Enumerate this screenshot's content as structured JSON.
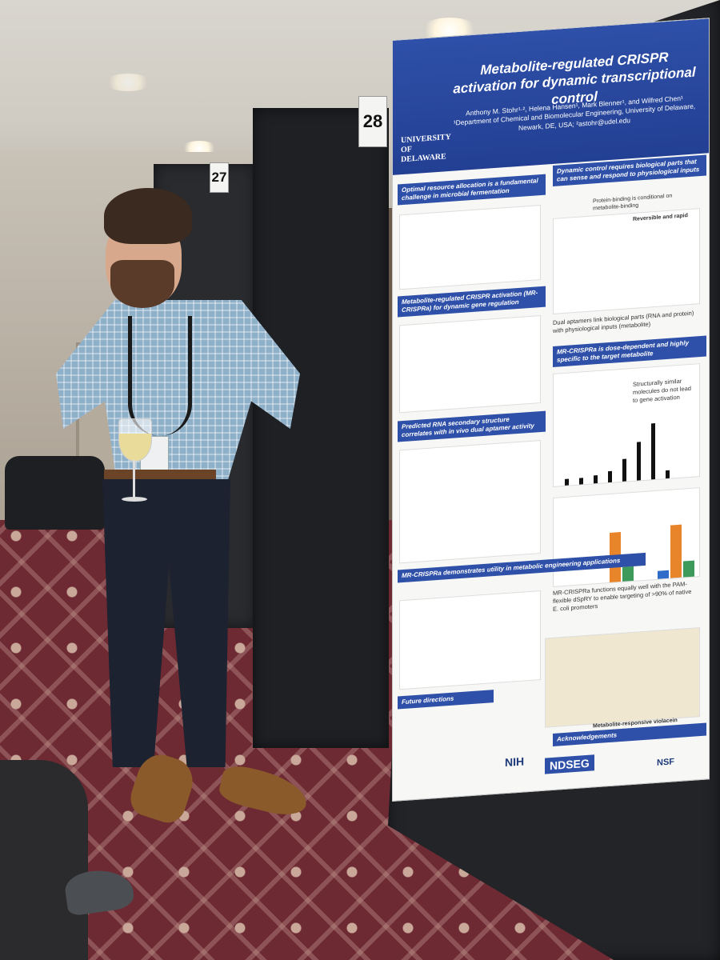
{
  "scene": {
    "panel_numbers": [
      "27",
      "28"
    ]
  },
  "poster": {
    "university": "UNIVERSITY OF DELAWARE",
    "title": "Metabolite-regulated CRISPR activation for dynamic transcriptional control",
    "authors": "Anthony M. Stohr¹·², Helena Hansen¹, Mark Blenner¹, and Wilfred Chen¹",
    "affiliation": "¹Department of Chemical and Biomolecular Engineering, University of Delaware, Newark, DE, USA; ²astohr@udel.edu",
    "sections": [
      "Optimal resource allocation is a fundamental challenge in microbial fermentation",
      "Dynamic control requires biological parts that can sense and respond to physiological inputs",
      "Metabolite-regulated CRISPR activation (MR-CRISPRa) for dynamic gene regulation",
      "MR-CRISPRa is dose-dependent and highly specific to the target metabolite",
      "Predicted RNA secondary structure correlates with in vivo dual aptamer activity",
      "MR-CRISPRa demonstrates utility in metabolic engineering applications",
      "Future directions",
      "Acknowledgements"
    ],
    "notes": [
      "Protein-binding is conditional on metabolite-binding",
      "Reversible and rapid",
      "Dual aptamers link biological parts (RNA and protein) with physiological inputs (metabolite)",
      "Structurally similar molecules do not lead to gene activation",
      "MR-CRISPRa functions equally well with the PAM-flexible dSpRY to enable targeting of >90% of native E. coli promoters",
      "Metabolite-responsive violacein biosynthesis"
    ],
    "sponsors": [
      "NIH",
      "NDSEG",
      "NSF"
    ],
    "accent": "#2f50a8"
  }
}
